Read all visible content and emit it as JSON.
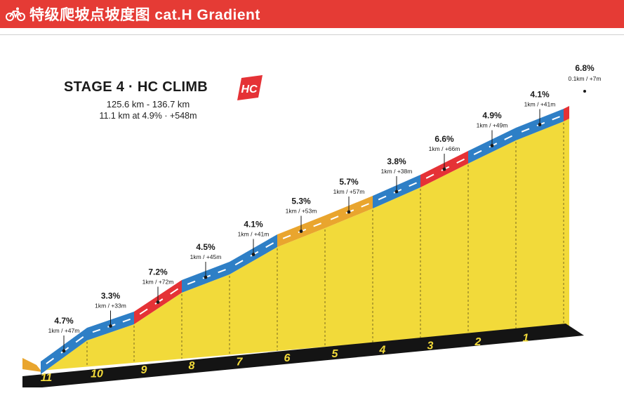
{
  "header": {
    "title": "特级爬坡点坡度图 cat.H Gradient",
    "bike_icon": "bicycle-icon",
    "color": "#e53b35"
  },
  "climb": {
    "stage_title": "STAGE 4 · HC CLIMB",
    "km_range": "125.6 km - 136.7 km",
    "summary": "11.1 km at 4.9% · +548m",
    "badge": "HC"
  },
  "colors": {
    "blue": "#2e7fc6",
    "red": "#e53236",
    "orange": "#e9a52e",
    "fill": "#f2da3a",
    "road": "#141414"
  },
  "segments": [
    {
      "marker": "11",
      "gradient": "4.7%",
      "detail": "1km / +47m",
      "color": "blue"
    },
    {
      "marker": "10",
      "gradient": "3.3%",
      "detail": "1km / +33m",
      "color": "blue"
    },
    {
      "marker": "9",
      "gradient": "7.2%",
      "detail": "1km / +72m",
      "color": "red"
    },
    {
      "marker": "8",
      "gradient": "4.5%",
      "detail": "1km / +45m",
      "color": "blue"
    },
    {
      "marker": "7",
      "gradient": "4.1%",
      "detail": "1km / +41m",
      "color": "blue"
    },
    {
      "marker": "6",
      "gradient": "5.3%",
      "detail": "1km / +53m",
      "color": "orange"
    },
    {
      "marker": "5",
      "gradient": "5.7%",
      "detail": "1km / +57m",
      "color": "orange"
    },
    {
      "marker": "4",
      "gradient": "3.8%",
      "detail": "1km / +38m",
      "color": "blue"
    },
    {
      "marker": "3",
      "gradient": "6.6%",
      "detail": "1km / +66m",
      "color": "red"
    },
    {
      "marker": "2",
      "gradient": "4.9%",
      "detail": "1km / +49m",
      "color": "blue"
    },
    {
      "marker": "1",
      "gradient": "4.1%",
      "detail": "1km / +41m",
      "color": "blue"
    },
    {
      "marker": "",
      "gradient": "6.8%",
      "detail": "0.1km / +7m",
      "color": "red"
    }
  ]
}
